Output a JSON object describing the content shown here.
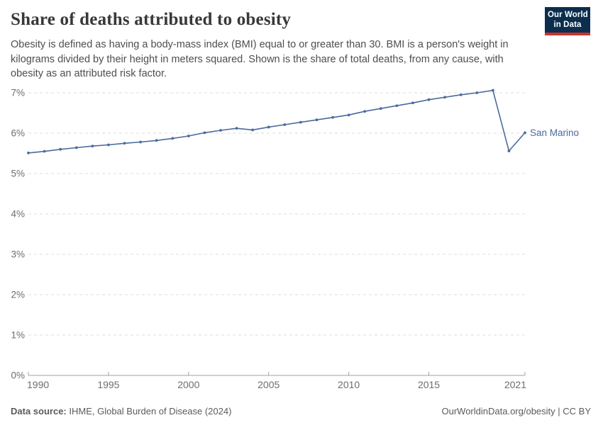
{
  "header": {
    "title": "Share of deaths attributed to obesity",
    "subtitle": "Obesity is defined as having a body-mass index (BMI) equal to or greater than 30. BMI is a person's weight in kilograms divided by their height in meters squared. Shown is the share of total deaths, from any cause, with obesity as an attributed risk factor.",
    "logo": {
      "line1": "Our World",
      "line2": "in Data",
      "bg_color": "#0b2e4e",
      "bar_color": "#cb342c"
    }
  },
  "chart_data": {
    "type": "line",
    "title": "Share of deaths attributed to obesity",
    "xlabel": "",
    "ylabel": "",
    "x": [
      1990,
      1991,
      1992,
      1993,
      1994,
      1995,
      1996,
      1997,
      1998,
      1999,
      2000,
      2001,
      2002,
      2003,
      2004,
      2005,
      2006,
      2007,
      2008,
      2009,
      2010,
      2011,
      2012,
      2013,
      2014,
      2015,
      2016,
      2017,
      2018,
      2019,
      2020,
      2021
    ],
    "series": [
      {
        "name": "San Marino",
        "color": "#4c6a9c",
        "values": [
          5.51,
          5.55,
          5.6,
          5.64,
          5.68,
          5.71,
          5.75,
          5.78,
          5.82,
          5.87,
          5.93,
          6.01,
          6.07,
          6.12,
          6.08,
          6.15,
          6.21,
          6.27,
          6.33,
          6.39,
          6.45,
          6.54,
          6.61,
          6.68,
          6.75,
          6.83,
          6.89,
          6.95,
          7.0,
          7.06,
          5.56,
          6.01
        ]
      }
    ],
    "xlim": [
      1990,
      2021
    ],
    "ylim": [
      0,
      7
    ],
    "x_tick_labels": [
      "1990",
      "1995",
      "2000",
      "2005",
      "2010",
      "2015",
      "2021"
    ],
    "x_tick_years": [
      1990,
      1995,
      2000,
      2005,
      2010,
      2015,
      2021
    ],
    "y_tick_labels": [
      "0%",
      "1%",
      "2%",
      "3%",
      "4%",
      "5%",
      "6%",
      "7%"
    ],
    "y_tick_values": [
      0,
      1,
      2,
      3,
      4,
      5,
      6,
      7
    ],
    "grid": "horizontal-dashed",
    "legend_position": "end-of-line-label",
    "colors": {
      "grid": "#dddddd",
      "axis": "#a3a3a3",
      "tick_label": "#6e6e6e"
    }
  },
  "footer": {
    "source_label": "Data source:",
    "source_text": " IHME, Global Burden of Disease (2024)",
    "rights": "OurWorldinData.org/obesity | CC BY"
  }
}
